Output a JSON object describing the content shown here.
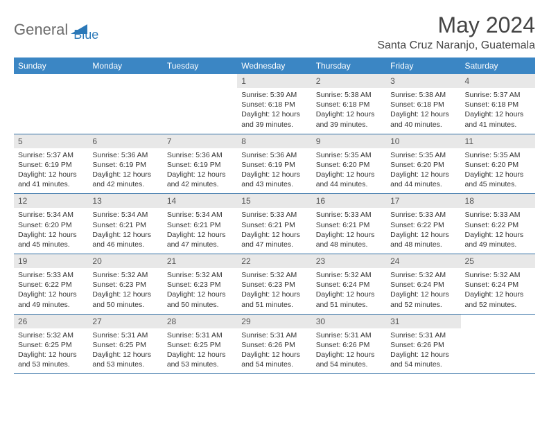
{
  "logo": {
    "text1": "General",
    "text2": "Blue",
    "brand_color": "#2a78b8",
    "gray_color": "#6b6b6b"
  },
  "title": "May 2024",
  "location": "Santa Cruz Naranjo, Guatemala",
  "header_bg": "#3b86c4",
  "daynum_bg": "#e8e8e8",
  "border_color": "#2e6ca3",
  "days_of_week": [
    "Sunday",
    "Monday",
    "Tuesday",
    "Wednesday",
    "Thursday",
    "Friday",
    "Saturday"
  ],
  "weeks": [
    [
      null,
      null,
      null,
      {
        "n": "1",
        "sr": "5:39 AM",
        "ss": "6:18 PM",
        "d": "12 hours and 39 minutes."
      },
      {
        "n": "2",
        "sr": "5:38 AM",
        "ss": "6:18 PM",
        "d": "12 hours and 39 minutes."
      },
      {
        "n": "3",
        "sr": "5:38 AM",
        "ss": "6:18 PM",
        "d": "12 hours and 40 minutes."
      },
      {
        "n": "4",
        "sr": "5:37 AM",
        "ss": "6:18 PM",
        "d": "12 hours and 41 minutes."
      }
    ],
    [
      {
        "n": "5",
        "sr": "5:37 AM",
        "ss": "6:19 PM",
        "d": "12 hours and 41 minutes."
      },
      {
        "n": "6",
        "sr": "5:36 AM",
        "ss": "6:19 PM",
        "d": "12 hours and 42 minutes."
      },
      {
        "n": "7",
        "sr": "5:36 AM",
        "ss": "6:19 PM",
        "d": "12 hours and 42 minutes."
      },
      {
        "n": "8",
        "sr": "5:36 AM",
        "ss": "6:19 PM",
        "d": "12 hours and 43 minutes."
      },
      {
        "n": "9",
        "sr": "5:35 AM",
        "ss": "6:20 PM",
        "d": "12 hours and 44 minutes."
      },
      {
        "n": "10",
        "sr": "5:35 AM",
        "ss": "6:20 PM",
        "d": "12 hours and 44 minutes."
      },
      {
        "n": "11",
        "sr": "5:35 AM",
        "ss": "6:20 PM",
        "d": "12 hours and 45 minutes."
      }
    ],
    [
      {
        "n": "12",
        "sr": "5:34 AM",
        "ss": "6:20 PM",
        "d": "12 hours and 45 minutes."
      },
      {
        "n": "13",
        "sr": "5:34 AM",
        "ss": "6:21 PM",
        "d": "12 hours and 46 minutes."
      },
      {
        "n": "14",
        "sr": "5:34 AM",
        "ss": "6:21 PM",
        "d": "12 hours and 47 minutes."
      },
      {
        "n": "15",
        "sr": "5:33 AM",
        "ss": "6:21 PM",
        "d": "12 hours and 47 minutes."
      },
      {
        "n": "16",
        "sr": "5:33 AM",
        "ss": "6:21 PM",
        "d": "12 hours and 48 minutes."
      },
      {
        "n": "17",
        "sr": "5:33 AM",
        "ss": "6:22 PM",
        "d": "12 hours and 48 minutes."
      },
      {
        "n": "18",
        "sr": "5:33 AM",
        "ss": "6:22 PM",
        "d": "12 hours and 49 minutes."
      }
    ],
    [
      {
        "n": "19",
        "sr": "5:33 AM",
        "ss": "6:22 PM",
        "d": "12 hours and 49 minutes."
      },
      {
        "n": "20",
        "sr": "5:32 AM",
        "ss": "6:23 PM",
        "d": "12 hours and 50 minutes."
      },
      {
        "n": "21",
        "sr": "5:32 AM",
        "ss": "6:23 PM",
        "d": "12 hours and 50 minutes."
      },
      {
        "n": "22",
        "sr": "5:32 AM",
        "ss": "6:23 PM",
        "d": "12 hours and 51 minutes."
      },
      {
        "n": "23",
        "sr": "5:32 AM",
        "ss": "6:24 PM",
        "d": "12 hours and 51 minutes."
      },
      {
        "n": "24",
        "sr": "5:32 AM",
        "ss": "6:24 PM",
        "d": "12 hours and 52 minutes."
      },
      {
        "n": "25",
        "sr": "5:32 AM",
        "ss": "6:24 PM",
        "d": "12 hours and 52 minutes."
      }
    ],
    [
      {
        "n": "26",
        "sr": "5:32 AM",
        "ss": "6:25 PM",
        "d": "12 hours and 53 minutes."
      },
      {
        "n": "27",
        "sr": "5:31 AM",
        "ss": "6:25 PM",
        "d": "12 hours and 53 minutes."
      },
      {
        "n": "28",
        "sr": "5:31 AM",
        "ss": "6:25 PM",
        "d": "12 hours and 53 minutes."
      },
      {
        "n": "29",
        "sr": "5:31 AM",
        "ss": "6:26 PM",
        "d": "12 hours and 54 minutes."
      },
      {
        "n": "30",
        "sr": "5:31 AM",
        "ss": "6:26 PM",
        "d": "12 hours and 54 minutes."
      },
      {
        "n": "31",
        "sr": "5:31 AM",
        "ss": "6:26 PM",
        "d": "12 hours and 54 minutes."
      },
      null
    ]
  ],
  "labels": {
    "sunrise": "Sunrise:",
    "sunset": "Sunset:",
    "daylight": "Daylight:"
  }
}
